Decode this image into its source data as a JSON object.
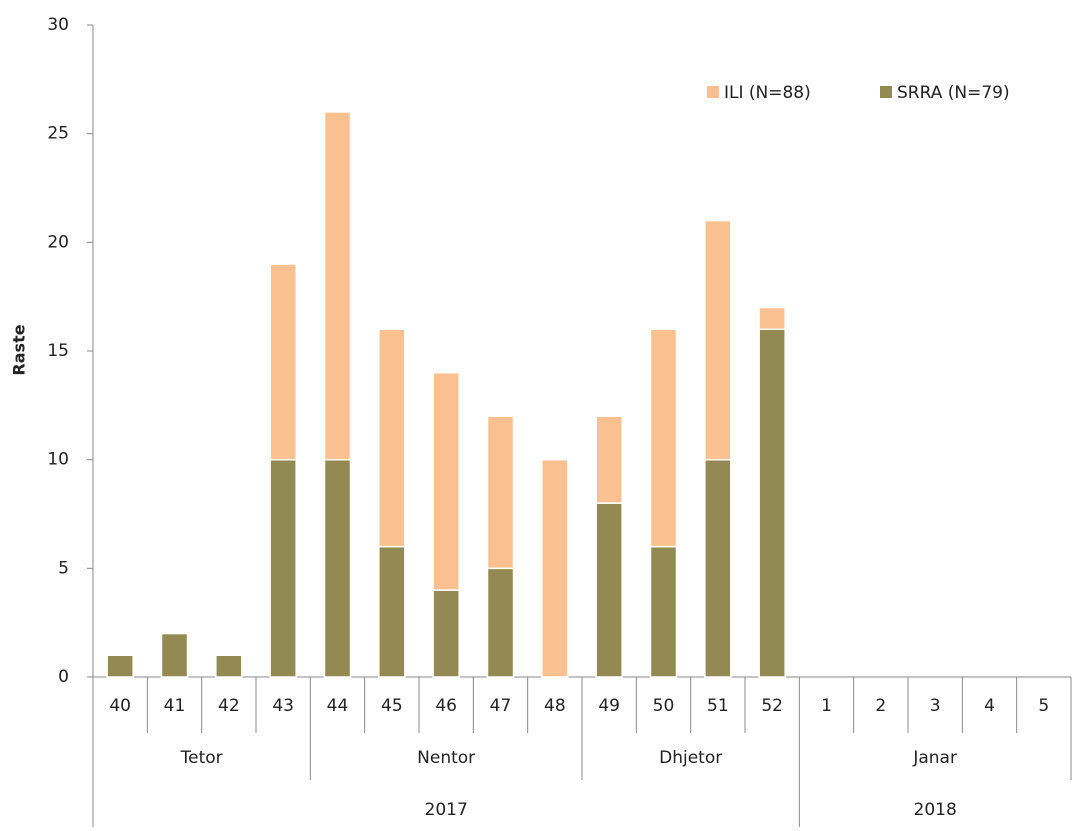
{
  "chart_data": {
    "type": "stacked_bar",
    "y_label": "Raste",
    "categories": [
      "40",
      "41",
      "42",
      "43",
      "44",
      "45",
      "46",
      "47",
      "48",
      "49",
      "50",
      "51",
      "52",
      "1",
      "2",
      "3",
      "4",
      "5"
    ],
    "series": [
      {
        "name": "SRRA (N=79)",
        "color": "#938953",
        "values": [
          1,
          2,
          1,
          10,
          10,
          6,
          4,
          5,
          0,
          8,
          6,
          10,
          16,
          null,
          null,
          null,
          null,
          null
        ]
      },
      {
        "name": "ILI (N=88)",
        "color": "#fac090",
        "values": [
          0,
          0,
          0,
          9,
          16,
          10,
          10,
          7,
          10,
          4,
          10,
          11,
          1,
          null,
          null,
          null,
          null,
          null
        ]
      }
    ],
    "month_groups": [
      {
        "label": "Tetor",
        "span": 4
      },
      {
        "label": "Nentor",
        "span": 5
      },
      {
        "label": "Dhjetor",
        "span": 4
      },
      {
        "label": "Janar",
        "span": 5
      }
    ],
    "year_groups": [
      {
        "label": "2017",
        "span": 13
      },
      {
        "label": "2018",
        "span": 5
      }
    ],
    "ylim": [
      0,
      30
    ],
    "yticks": [
      0,
      5,
      10,
      15,
      20,
      25,
      30
    ],
    "legend": "top-right"
  }
}
